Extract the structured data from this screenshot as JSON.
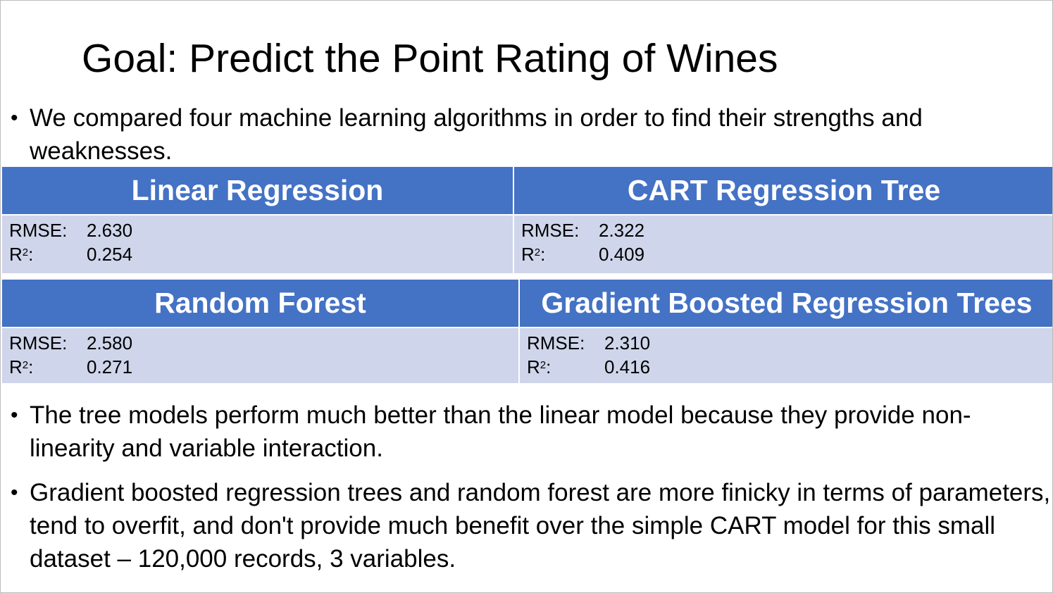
{
  "title": "Goal: Predict the Point Rating of Wines",
  "bullets": {
    "intro": "We compared four machine learning algorithms in order to find their strengths and weaknesses.",
    "finding_1": "The tree models perform much better than the linear model because they provide non-linearity and variable interaction.",
    "finding_2": "Gradient boosted regression trees and random forest are more finicky in terms of parameters, tend to overfit, and don't provide much benefit over the simple CART model for this small dataset – 120,000 records, 3 variables."
  },
  "bullet_glyph": "•",
  "metric_labels": {
    "rmse": "RMSE:",
    "r2_base": "R",
    "r2_sup": "2",
    "r2_suffix": ":"
  },
  "models": [
    {
      "name": "Linear Regression",
      "rmse": "2.630",
      "r2": "0.254"
    },
    {
      "name": "CART Regression Tree",
      "rmse": "2.322",
      "r2": "0.409"
    },
    {
      "name": "Random Forest",
      "rmse": "2.580",
      "r2": "0.271"
    },
    {
      "name": "Gradient Boosted Regression Trees",
      "rmse": "2.310",
      "r2": "0.416"
    }
  ],
  "colors": {
    "header_bg": "#4472c4",
    "header_text": "#ffffff",
    "cell_bg": "#cfd5ea"
  }
}
